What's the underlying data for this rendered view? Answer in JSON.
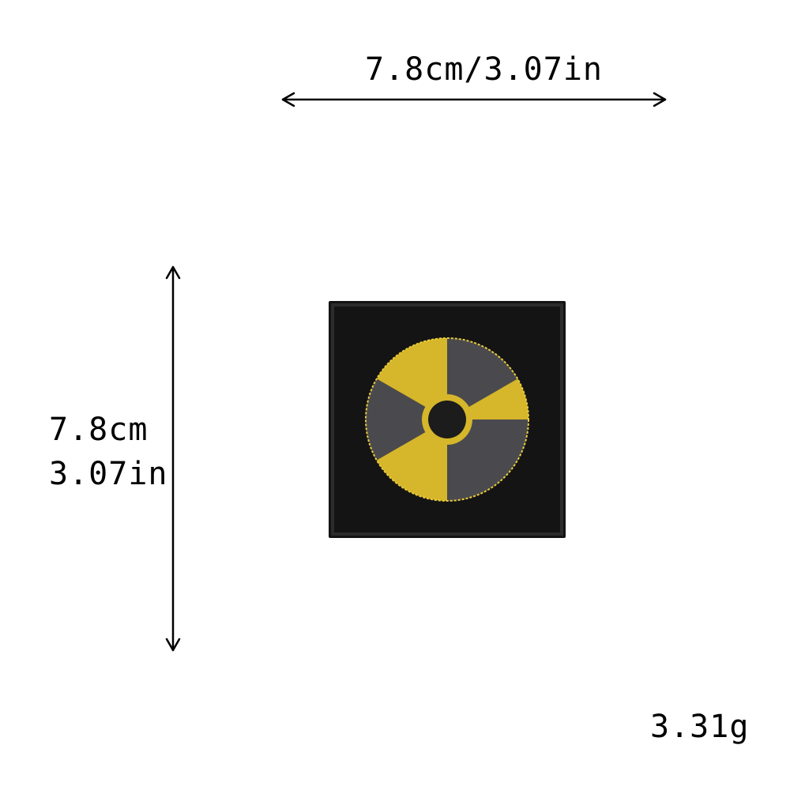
{
  "dimensions": {
    "width_text": "7.8cm/3.07in",
    "height_cm": "7.8cm",
    "height_in": "3.07in"
  },
  "weight": "3.31g",
  "patch": {
    "description_icon": "radiation-symbol-icon",
    "colors": {
      "background": "#141414",
      "border": "#2a2a2a",
      "yellow": "#d6b62a",
      "gray": "#4a4a4e",
      "stitch": "#e8cc3a"
    }
  }
}
